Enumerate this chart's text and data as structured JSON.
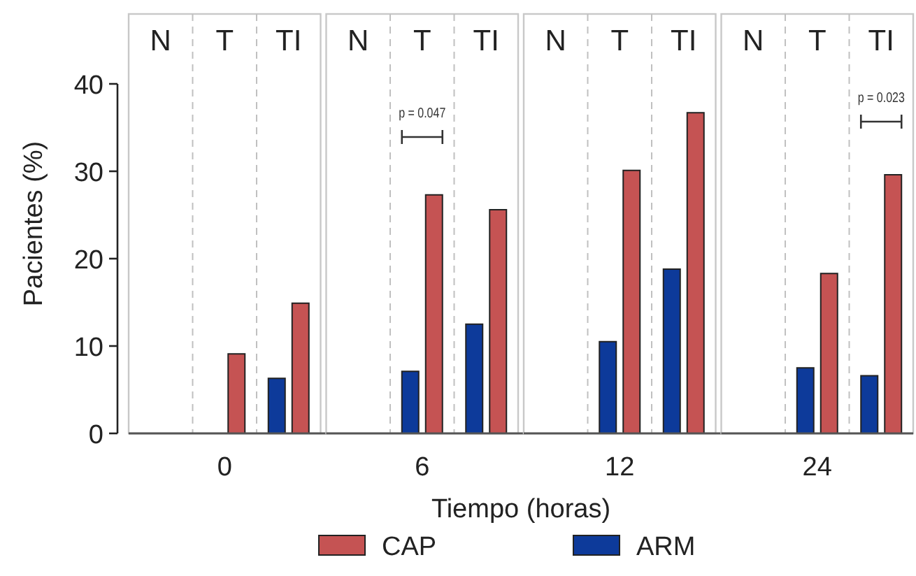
{
  "chart_data": [
    {
      "type": "bar",
      "title": "0",
      "categories": [
        "N",
        "T",
        "TI"
      ],
      "ylabel": "Pacientes (%)",
      "xlabel": "Tiempo (horas)",
      "ylim": [
        0,
        48
      ],
      "yticks": [
        0,
        10,
        20,
        30,
        40
      ],
      "legend": "bottom",
      "series": [
        {
          "name": "ARM",
          "color": "#0d3a9a",
          "values": [
            null,
            null,
            6.3
          ]
        },
        {
          "name": "CAP",
          "color": "#c55353",
          "values": [
            null,
            9.1,
            14.9
          ]
        }
      ]
    },
    {
      "type": "bar",
      "title": "6",
      "categories": [
        "N",
        "T",
        "TI"
      ],
      "ylim": [
        0,
        48
      ],
      "tick_labels": "x",
      "annotations": [
        "p = 0.047"
      ],
      "series": [
        {
          "color": "#0d3a9a",
          "values": [
            null,
            7.1,
            12.5
          ]
        },
        {
          "color": "#c55353",
          "values": [
            null,
            27.3,
            25.6
          ]
        }
      ]
    },
    {
      "type": "bar",
      "title": "12",
      "categories": [
        "N",
        "T",
        "TI"
      ],
      "ylim": [
        0,
        48
      ],
      "tick_labels": "x",
      "series": [
        {
          "color": "#0d3a9a",
          "values": [
            null,
            10.5,
            18.8
          ]
        },
        {
          "color": "#c55353",
          "values": [
            null,
            30.1,
            36.7
          ]
        }
      ]
    },
    {
      "type": "bar",
      "title": "24",
      "categories": [
        "N",
        "T",
        "TI"
      ],
      "ylim": [
        0,
        48
      ],
      "tick_labels": "x",
      "annotations": [
        "p = 0.023"
      ],
      "series": [
        {
          "color": "#0d3a9a",
          "values": [
            null,
            7.5,
            6.6
          ]
        },
        {
          "color": "#c55353",
          "values": [
            null,
            18.3,
            29.6
          ]
        }
      ]
    }
  ]
}
